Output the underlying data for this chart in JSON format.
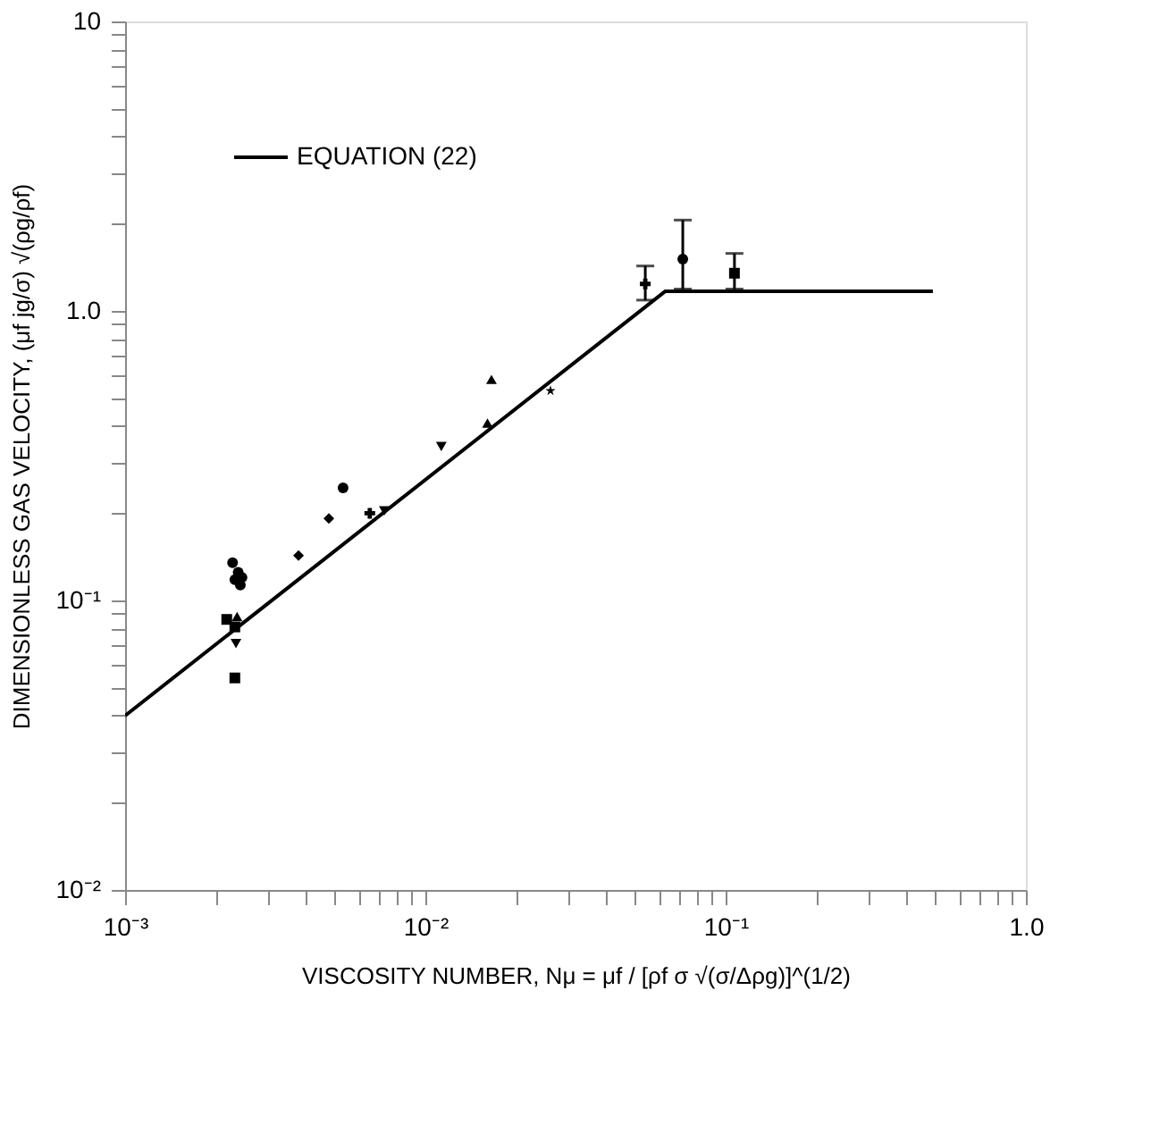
{
  "chart_data": {
    "type": "scatter",
    "xlabel": "VISCOSITY NUMBER, Nμ = μf / [ρf σ √(σ/Δρg)]^(1/2)",
    "ylabel": "DIMENSIONLESS GAS VELOCITY, (μf jg/σ) √(ρg/ρf)",
    "log": "xy",
    "legend": "top left",
    "grid": false,
    "xlim": [
      0.001,
      1.0
    ],
    "ylim": [
      0.01,
      10
    ],
    "xticks": [
      {
        "value": 0.001,
        "label": "10⁻³"
      },
      {
        "value": 0.002,
        "label": null
      },
      {
        "value": 0.003,
        "label": null
      },
      {
        "value": 0.004,
        "label": null
      },
      {
        "value": 0.005,
        "label": null
      },
      {
        "value": 0.006,
        "label": null
      },
      {
        "value": 0.007,
        "label": null
      },
      {
        "value": 0.008,
        "label": null
      },
      {
        "value": 0.009,
        "label": null
      },
      {
        "value": 0.01,
        "label": "10⁻²"
      },
      {
        "value": 0.02,
        "label": null
      },
      {
        "value": 0.03,
        "label": null
      },
      {
        "value": 0.04,
        "label": null
      },
      {
        "value": 0.05,
        "label": null
      },
      {
        "value": 0.06,
        "label": null
      },
      {
        "value": 0.07,
        "label": null
      },
      {
        "value": 0.08,
        "label": null
      },
      {
        "value": 0.09,
        "label": null
      },
      {
        "value": 0.1,
        "label": "10⁻¹"
      },
      {
        "value": 0.2,
        "label": null
      },
      {
        "value": 0.3,
        "label": null
      },
      {
        "value": 0.4,
        "label": null
      },
      {
        "value": 0.5,
        "label": null
      },
      {
        "value": 0.6,
        "label": null
      },
      {
        "value": 0.7,
        "label": null
      },
      {
        "value": 0.8,
        "label": null
      },
      {
        "value": 0.9,
        "label": null
      },
      {
        "value": 1.0,
        "label": "1.0"
      }
    ],
    "yticks": [
      {
        "value": 0.01,
        "label": "10⁻²"
      },
      {
        "value": 0.02,
        "label": null
      },
      {
        "value": 0.03,
        "label": null
      },
      {
        "value": 0.04,
        "label": null
      },
      {
        "value": 0.05,
        "label": null
      },
      {
        "value": 0.06,
        "label": null
      },
      {
        "value": 0.07,
        "label": null
      },
      {
        "value": 0.08,
        "label": null
      },
      {
        "value": 0.09,
        "label": null
      },
      {
        "value": 0.1,
        "label": "10⁻¹"
      },
      {
        "value": 0.2,
        "label": null
      },
      {
        "value": 0.3,
        "label": null
      },
      {
        "value": 0.4,
        "label": null
      },
      {
        "value": 0.5,
        "label": null
      },
      {
        "value": 0.6,
        "label": null
      },
      {
        "value": 0.7,
        "label": null
      },
      {
        "value": 0.8,
        "label": null
      },
      {
        "value": 0.9,
        "label": null
      },
      {
        "value": 1.0,
        "label": "1.0"
      },
      {
        "value": 2,
        "label": null
      },
      {
        "value": 3,
        "label": null
      },
      {
        "value": 4,
        "label": null
      },
      {
        "value": 5,
        "label": null
      },
      {
        "value": 6,
        "label": null
      },
      {
        "value": 7,
        "label": null
      },
      {
        "value": 8,
        "label": null
      },
      {
        "value": 9,
        "label": null
      },
      {
        "value": 10,
        "label": "10"
      }
    ],
    "series": [
      {
        "name": "EQUATION (22)",
        "type": "line",
        "line_style": "solid",
        "marker": "none",
        "color": "#000000",
        "x": [
          0.001,
          0.063,
          0.49
        ],
        "values": [
          0.04,
          1.17,
          1.17
        ]
      },
      {
        "marker": "circle",
        "color": "#000000",
        "x": [
          0.00228,
          0.00238,
          0.00245,
          0.00232,
          0.00242
        ],
        "values": [
          0.135,
          0.125,
          0.12,
          0.118,
          0.113
        ]
      },
      {
        "marker": "square",
        "color": "#000000",
        "x": [
          0.00218
        ],
        "values": [
          0.086
        ]
      },
      {
        "marker": "triangle",
        "color": "#000000",
        "x": [
          0.00236
        ],
        "values": [
          0.088
        ]
      },
      {
        "marker": "square",
        "color": "#000000",
        "x": [
          0.00232,
          0.00232
        ],
        "values": [
          0.081,
          0.054
        ]
      },
      {
        "marker": "triangle-down",
        "color": "#000000",
        "x": [
          0.00234,
          0.0073
        ],
        "values": [
          0.071,
          0.204
        ]
      },
      {
        "marker": "diamond",
        "color": "#000000",
        "x": [
          0.00378,
          0.00477
        ],
        "values": [
          0.143,
          0.192
        ]
      },
      {
        "marker": "circle",
        "color": "#000000",
        "x": [
          0.00532,
          0.072
        ],
        "values": [
          0.245,
          1.51
        ],
        "errors": [
          null,
          [
            1.19,
            2.06
          ]
        ]
      },
      {
        "marker": "cross",
        "color": "#000000",
        "x": [
          0.00653,
          0.054
        ],
        "values": [
          0.2,
          1.24
        ],
        "errors": [
          null,
          [
            1.09,
            1.43
          ]
        ]
      },
      {
        "marker": "triangle-down",
        "color": "#000000",
        "x": [
          0.0113
        ],
        "values": [
          0.34
        ]
      },
      {
        "marker": "triangle",
        "color": "#000000",
        "x": [
          0.0166,
          0.0161
        ],
        "values": [
          0.58,
          0.41
        ]
      },
      {
        "marker": "star",
        "color": "#000000",
        "x": [
          0.0261
        ],
        "values": [
          0.53
        ]
      },
      {
        "marker": "square",
        "color": "#000000",
        "x": [
          0.107
        ],
        "values": [
          1.35
        ],
        "errors": [
          [
            1.19,
            1.58
          ]
        ]
      }
    ]
  }
}
